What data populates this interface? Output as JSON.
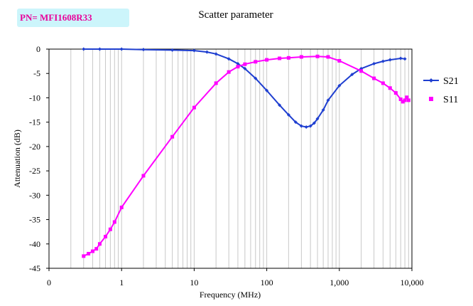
{
  "part_number": "PN= MFI1608R33",
  "chart_data": {
    "type": "line",
    "title": "Scatter parameter",
    "xlabel": "Frequency (MHz)",
    "ylabel": "Attenuation (dB)",
    "x_scale": "log",
    "xlim": [
      0.1,
      10000
    ],
    "ylim": [
      -45,
      0
    ],
    "x_tick_labels": [
      "0",
      "1",
      "10",
      "100",
      "1,000",
      "10,000"
    ],
    "y_ticks": [
      0,
      -5,
      -10,
      -15,
      -20,
      -25,
      -30,
      -35,
      -40,
      -45
    ],
    "grid": "vertical minor log gridlines",
    "legend_position": "right",
    "series": [
      {
        "name": "S21",
        "color": "#1f3fd0",
        "marker": "diamond",
        "x": [
          0.3,
          0.5,
          1,
          2,
          5,
          10,
          15,
          20,
          30,
          40,
          50,
          70,
          100,
          150,
          200,
          250,
          300,
          350,
          400,
          450,
          500,
          600,
          700,
          1000,
          1500,
          2000,
          3000,
          4000,
          5000,
          7000,
          8000
        ],
        "y": [
          0,
          0,
          0,
          -0.1,
          -0.2,
          -0.3,
          -0.6,
          -1,
          -2,
          -3,
          -4,
          -6,
          -8.5,
          -11.5,
          -13.5,
          -15,
          -15.8,
          -16,
          -15.8,
          -15.2,
          -14.3,
          -12.5,
          -10.5,
          -7.5,
          -5.2,
          -4,
          -3,
          -2.5,
          -2.2,
          -1.9,
          -2
        ]
      },
      {
        "name": "S11",
        "color": "#ff00ff",
        "marker": "square",
        "x": [
          0.3,
          0.35,
          0.4,
          0.45,
          0.5,
          0.6,
          0.7,
          0.8,
          1,
          2,
          5,
          10,
          20,
          30,
          40,
          50,
          70,
          100,
          150,
          200,
          300,
          500,
          700,
          1000,
          2000,
          3000,
          4000,
          5000,
          6000,
          7000,
          7500,
          8000,
          8500,
          9000
        ],
        "y": [
          -42.5,
          -42,
          -41.5,
          -41,
          -40,
          -38.5,
          -37,
          -35.5,
          -32.5,
          -26,
          -18,
          -12,
          -7,
          -4.7,
          -3.6,
          -3.1,
          -2.6,
          -2.2,
          -1.9,
          -1.8,
          -1.6,
          -1.5,
          -1.6,
          -2.4,
          -4.5,
          -6,
          -7,
          -8,
          -9,
          -10.3,
          -10.8,
          -10.5,
          -9.9,
          -10.5
        ]
      }
    ]
  }
}
